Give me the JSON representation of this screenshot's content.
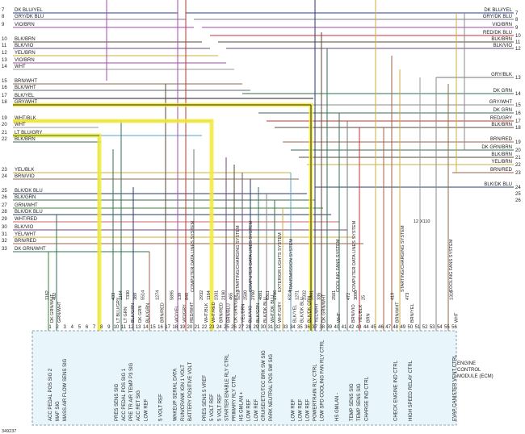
{
  "figure_id": "349237",
  "module": {
    "line1": "ENGINE",
    "line2": "CONTROL",
    "line3": "MODULE (ECM)"
  },
  "left_wires": [
    {
      "num": "7",
      "label": "DK BLU/YEL",
      "color": "#1f3d99"
    },
    {
      "num": "8",
      "label": "GRY/DK BLU",
      "color": "#7a7a9a"
    },
    {
      "num": "9",
      "label": "VIO/BRN",
      "color": "#a24aa8"
    },
    {
      "num": "10",
      "label": "BLK/BRN",
      "color": "#5a4a3a"
    },
    {
      "num": "11",
      "label": "BLK/VIO",
      "color": "#6a4a7a"
    },
    {
      "num": "12",
      "label": "YEL/BRN",
      "color": "#c8b040"
    },
    {
      "num": "13",
      "label": "VIO/BRN",
      "color": "#a24aa8"
    },
    {
      "num": "14",
      "label": "WHT",
      "color": "#999999"
    },
    {
      "num": "15",
      "label": "BRN/WHT",
      "color": "#8b6b4a"
    },
    {
      "num": "16",
      "label": "BLK/WHT",
      "color": "#666666"
    },
    {
      "num": "17",
      "label": "BLK/YEL",
      "color": "#222222"
    },
    {
      "num": "18",
      "label": "GRY/WHT",
      "color": "#888888"
    },
    {
      "num": "19",
      "label": "WHT/BLK",
      "color": "#888888"
    },
    {
      "num": "20",
      "label": "WHT",
      "color": "#999999"
    },
    {
      "num": "21",
      "label": "LT BLU/GRY",
      "color": "#5aa0c8"
    },
    {
      "num": "22",
      "label": "BLK/BRN",
      "color": "#2f6f4f"
    },
    {
      "num": "23",
      "label": "YEL/BLK",
      "color": "#c8b040"
    },
    {
      "num": "24",
      "label": "BRN/VIO",
      "color": "#8b6b4a"
    },
    {
      "num": "25",
      "label": "BLK/DK BLU",
      "color": "#2a3a6a"
    },
    {
      "num": "26",
      "label": "BLK/GRN",
      "color": "#2f6f4f"
    },
    {
      "num": "27",
      "label": "GRN/WHT",
      "color": "#3a8a3a"
    },
    {
      "num": "28",
      "label": "BLK/DK BLU",
      "color": "#2a3a6a"
    },
    {
      "num": "29",
      "label": "WHT/RED",
      "color": "#c86a6a"
    },
    {
      "num": "30",
      "label": "BLK/VIO",
      "color": "#6a4a7a"
    },
    {
      "num": "31",
      "label": "YEL/WHT",
      "color": "#c8b040"
    },
    {
      "num": "32",
      "label": "BRN/RED",
      "color": "#a0604a"
    },
    {
      "num": "33",
      "label": "DK GRN/WHT",
      "color": "#2f6f4f"
    }
  ],
  "right_wires": [
    {
      "num": "7",
      "label": "DK BLU/YEL",
      "color": "#1f3d99"
    },
    {
      "num": "8",
      "label": "GRY/DK BLU",
      "color": "#7a7a9a"
    },
    {
      "num": "9",
      "label": "VIO/BRN",
      "color": "#a24aa8"
    },
    {
      "num": "10",
      "label": "RED/DK BLU",
      "color": "#c83030"
    },
    {
      "num": "11",
      "label": "BLK/BRN",
      "color": "#5a4a3a"
    },
    {
      "num": "12",
      "label": "BLK/VIO",
      "color": "#6a4a7a"
    },
    {
      "num": "13",
      "label": "GRY/BLK",
      "color": "#777777"
    },
    {
      "num": "14",
      "label": "DK GRN",
      "color": "#2f6f4f"
    },
    {
      "num": "15",
      "label": "GRY/WHT",
      "color": "#888888"
    },
    {
      "num": "16",
      "label": "DK GRN",
      "color": "#2f6f4f"
    },
    {
      "num": "17",
      "label": "RED/GRY",
      "color": "#c83030"
    },
    {
      "num": "18",
      "label": "BLK/BRN",
      "color": "#5a4a3a"
    },
    {
      "num": "19",
      "label": "BRN/RED",
      "color": "#a0604a"
    },
    {
      "num": "20",
      "label": "DK GRN/BRN",
      "color": "#2f6f4f"
    },
    {
      "num": "21",
      "label": "BLK/BRN",
      "color": "#5a4a3a"
    },
    {
      "num": "22",
      "label": "YEL/BRN",
      "color": "#c8b040"
    },
    {
      "num": "23",
      "label": "BRN/RED",
      "color": "#a0604a"
    },
    {
      "num": "24",
      "label": "BLK/DK BLU",
      "color": "#2a3a6a"
    },
    {
      "num": "25",
      "label": "",
      "color": "#ffffff"
    },
    {
      "num": "26",
      "label": "",
      "color": "#ffffff"
    }
  ],
  "pins": [
    {
      "pin": "1",
      "circuit": "1162",
      "color": "DK GRN/WHT",
      "func": "ACC PEDAL POS SIG 2"
    },
    {
      "pin": "2",
      "circuit": "402",
      "color": "GRN/WHT",
      "func": "MAF SIG"
    },
    {
      "pin": "3",
      "circuit": "",
      "color": "",
      "func": "MASS AIR FLOW SENS SIG"
    },
    {
      "pin": "4",
      "circuit": "",
      "color": "",
      "func": ""
    },
    {
      "pin": "5",
      "circuit": "",
      "color": "",
      "func": ""
    },
    {
      "pin": "6",
      "circuit": "",
      "color": "",
      "func": ""
    },
    {
      "pin": "7",
      "circuit": "",
      "color": "",
      "func": ""
    },
    {
      "pin": "8",
      "circuit": "",
      "color": "",
      "func": ""
    },
    {
      "pin": "9",
      "circuit": "",
      "color": "",
      "func": ""
    },
    {
      "pin": "10",
      "circuit": "433",
      "color": "LT BLU/GRY",
      "func": "PRES SENS SIG"
    },
    {
      "pin": "11",
      "circuit": "1164",
      "color": "LT GRN",
      "func": "ACC PEDAL POS SIG 1"
    },
    {
      "pin": "12",
      "circuit": "7330",
      "color": "BLK/GRN",
      "func": "PRE TR AIR TEMP P3 SIG"
    },
    {
      "pin": "13",
      "circuit": "389",
      "color": "DK GRN",
      "func": "ACC RET SIG"
    },
    {
      "pin": "14",
      "circuit": "5514",
      "color": "BLK/GRN",
      "func": "LOW REF"
    },
    {
      "pin": "15",
      "circuit": "",
      "color": "",
      "func": ""
    },
    {
      "pin": "16",
      "circuit": "1274",
      "color": "BRN/RED",
      "func": "5 VOLT REF"
    },
    {
      "pin": "17",
      "circuit": "",
      "color": "",
      "func": ""
    },
    {
      "pin": "18",
      "circuit": "5895",
      "color": "VIO/YEL",
      "func": "WAKEUP SERIAL DATA"
    },
    {
      "pin": "19",
      "circuit": "139",
      "color": "VIO/GRY",
      "func": "RUN/CRANK IGN 1 VOLT"
    },
    {
      "pin": "20",
      "circuit": "840",
      "color": "RED/WHT",
      "func": "BATTERY POSITIVE VOLT"
    },
    {
      "pin": "21",
      "circuit": "",
      "color": "",
      "func": ""
    },
    {
      "pin": "22",
      "circuit": "2932",
      "color": "WHT/BLK",
      "func": "PRES SENS 5 VREF"
    },
    {
      "pin": "23",
      "circuit": "1164",
      "color": "WHT/RED",
      "func": "5 VOLT REF"
    },
    {
      "pin": "24",
      "circuit": "2331",
      "color": "BRN/RED",
      "func": "5 VOLT REF"
    },
    {
      "pin": "25",
      "circuit": "2180",
      "color": "BRN/BLU",
      "func": "STARTER ENABLE RLY CTRL"
    },
    {
      "pin": "26",
      "circuit": "465",
      "color": "DK GRN/GRY",
      "func": "PRIMARY RLY CTRL"
    },
    {
      "pin": "27",
      "circuit": "5292",
      "color": "YEL/BRN",
      "func": "HS GMLAN +"
    },
    {
      "pin": "28",
      "circuit": "2500",
      "color": "BLK/VIO",
      "func": "LOW REF"
    },
    {
      "pin": "29",
      "circuit": "2760",
      "color": "BLK/GRN",
      "func": "LOW REF"
    },
    {
      "pin": "30",
      "circuit": "4891",
      "color": "BLK/DK BLU",
      "func": "CRUISE/ETC/TCC BRK SW SIG"
    },
    {
      "pin": "31",
      "circuit": "6311",
      "color": "WHT/DK BLU",
      "func": "PARK NEUTRAL POS SW SIG"
    },
    {
      "pin": "32",
      "circuit": "1786",
      "color": "WHT/GRY",
      "func": ""
    },
    {
      "pin": "33",
      "circuit": "",
      "color": "",
      "func": ""
    },
    {
      "pin": "34",
      "circuit": "6314",
      "color": "BLK/YEL",
      "func": "LOW REF"
    },
    {
      "pin": "35",
      "circuit": "1271",
      "color": "BLK/DK BLU",
      "func": "LOW REF"
    },
    {
      "pin": "36",
      "circuit": "2332",
      "color": "BLK/DK GRN",
      "func": "LOW REF"
    },
    {
      "pin": "37",
      "circuit": "5991",
      "color": "YEL/WHT",
      "func": "POWERTRAIN RLY CTRL"
    },
    {
      "pin": "38",
      "circuit": "335",
      "color": "DK GRN/WHT",
      "func": "LOW SPD COOLING FAN RLY CTRL"
    },
    {
      "pin": "39",
      "circuit": "",
      "color": "",
      "func": ""
    },
    {
      "pin": "40",
      "circuit": "2501",
      "color": "WHT",
      "func": "HS GMLAN -"
    },
    {
      "pin": "41",
      "circuit": "",
      "color": "",
      "func": ""
    },
    {
      "pin": "42",
      "circuit": "472",
      "color": "BRN/VIO",
      "func": "TEMP SENS SIG"
    },
    {
      "pin": "43",
      "circuit": "3090",
      "color": "YEL/BLK",
      "func": "TEMP SENS SIG"
    },
    {
      "pin": "44",
      "circuit": "25",
      "color": "BRN",
      "func": "CHARGE IND CTRL"
    },
    {
      "pin": "45",
      "circuit": "",
      "color": "",
      "func": ""
    },
    {
      "pin": "46",
      "circuit": "",
      "color": "",
      "func": ""
    },
    {
      "pin": "47",
      "circuit": "",
      "color": "",
      "func": ""
    },
    {
      "pin": "48",
      "circuit": "419",
      "color": "BRN/WHT",
      "func": "CHECK ENGINE IND CTRL"
    },
    {
      "pin": "49",
      "circuit": "",
      "color": "",
      "func": ""
    },
    {
      "pin": "50",
      "circuit": "473",
      "color": "BRN/YEL",
      "func": "HIGH SPEED RELAY CTRL"
    },
    {
      "pin": "51",
      "circuit": "",
      "color": "",
      "func": ""
    },
    {
      "pin": "52",
      "circuit": "",
      "color": "",
      "func": ""
    },
    {
      "pin": "53",
      "circuit": "",
      "color": "",
      "func": ""
    },
    {
      "pin": "54",
      "circuit": "",
      "color": "",
      "func": ""
    },
    {
      "pin": "55",
      "circuit": "",
      "color": "",
      "func": ""
    },
    {
      "pin": "56",
      "circuit": "1310",
      "color": "WHT",
      "func": "EVAP CANISTER VENT CTRL"
    }
  ],
  "system_notes": [
    {
      "text": "COMPUTER DATA LINES SYSTEM"
    },
    {
      "text": "STARTING/CHARGING SYSTEM"
    },
    {
      "text": "COMPUTER DATA LINES SYSTEM"
    },
    {
      "text": "EXTERIOR LIGHTS SYSTEM"
    },
    {
      "text": "TRANSMISSION SYSTEM"
    },
    {
      "text": "COOLING FANS SYSTEM"
    },
    {
      "text": "COMPUTER DATA LINES SYSTEM"
    },
    {
      "text": "STARTING/CHARGING SYSTEM"
    },
    {
      "text": "COOLING FANS SYSTEM"
    }
  ],
  "splice_label": "X110",
  "splice_num": "12",
  "highlight_color": "#f2ea3a"
}
